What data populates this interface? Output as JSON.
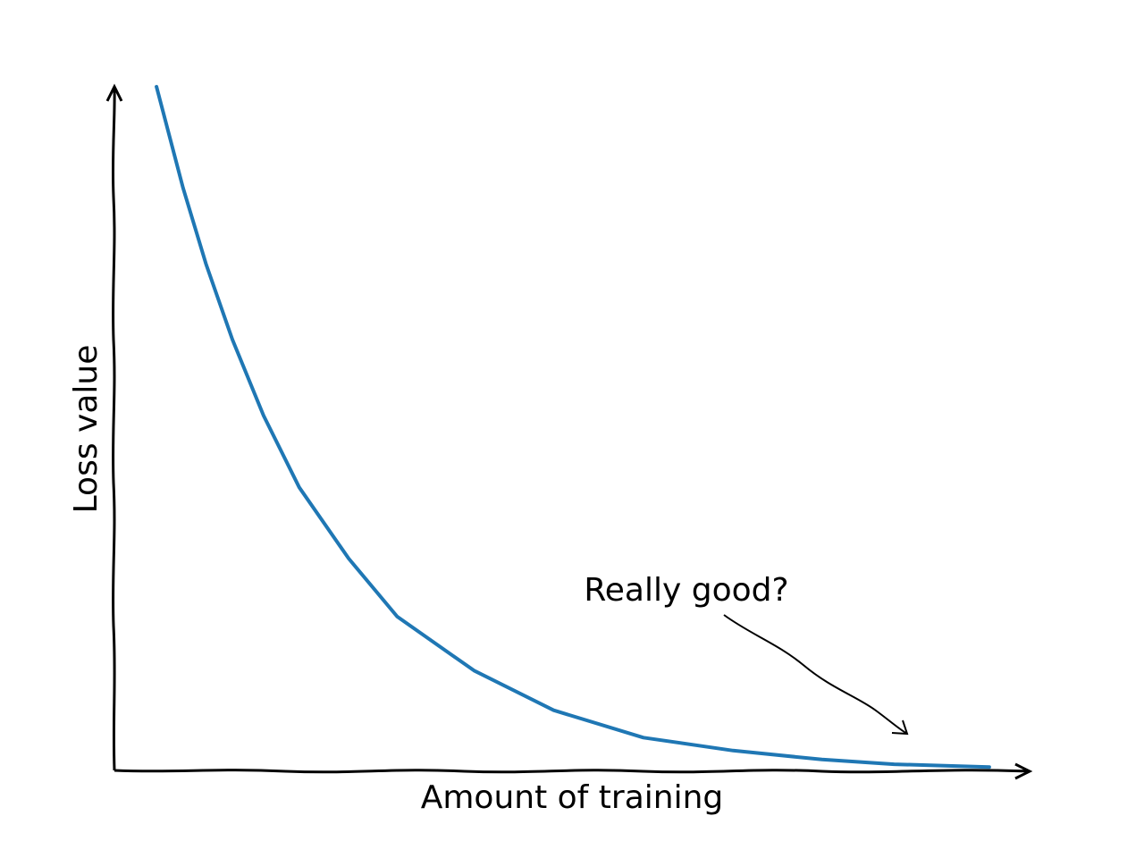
{
  "chart_data": {
    "type": "line",
    "xlabel": "Amount of training",
    "ylabel": "Loss value",
    "annotation": "Really good?",
    "x": [
      0.046,
      0.075,
      0.1,
      0.129,
      0.163,
      0.202,
      0.256,
      0.309,
      0.393,
      0.48,
      0.578,
      0.676,
      0.773,
      0.852,
      0.956
    ],
    "series": [
      {
        "color": "#1f77b4",
        "values": [
          1.0,
          0.852,
          0.741,
          0.63,
          0.519,
          0.414,
          0.31,
          0.225,
          0.146,
          0.088,
          0.048,
          0.029,
          0.016,
          0.009,
          0.005
        ]
      }
    ],
    "xlim": [
      0,
      1
    ],
    "ylim": [
      0,
      1
    ]
  }
}
